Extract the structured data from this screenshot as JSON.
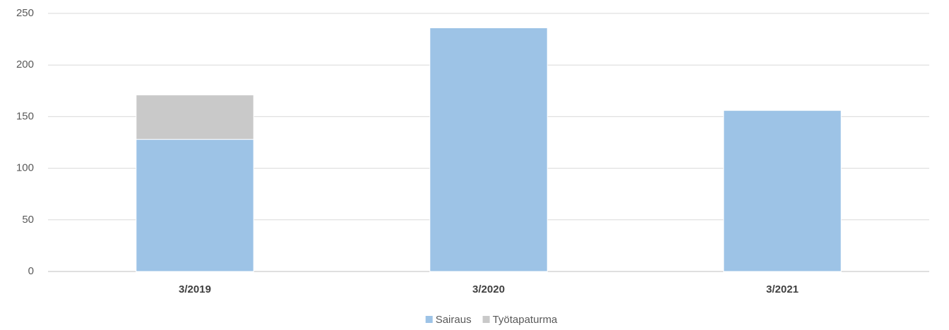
{
  "chart_data": {
    "type": "stacked_bar",
    "categories": [
      "3/2019",
      "3/2020",
      "3/2021"
    ],
    "series": [
      {
        "name": "Sairaus",
        "color": "#9dc3e6",
        "values": [
          128,
          236,
          156
        ]
      },
      {
        "name": "Työtapaturma",
        "color": "#c9c9c9",
        "values": [
          43,
          0,
          0
        ]
      }
    ],
    "ylim": [
      0,
      250
    ],
    "yticks": [
      0,
      50,
      100,
      150,
      200,
      250
    ],
    "grid": true,
    "legend": "bottom"
  }
}
